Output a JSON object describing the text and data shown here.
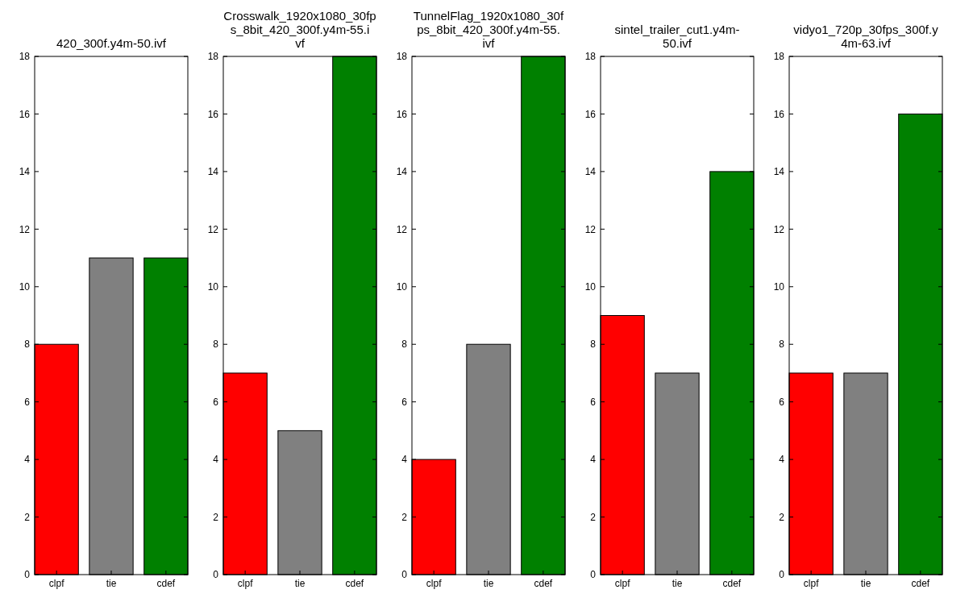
{
  "chart_data": [
    {
      "type": "bar",
      "title": "420_300f.y4m-50.ivf",
      "categories": [
        "clpf",
        "tie",
        "cdef"
      ],
      "values": [
        8,
        11,
        11
      ],
      "colors": [
        "#ff0000",
        "#808080",
        "#008000"
      ],
      "ylim": [
        0,
        18
      ],
      "yticks": [
        0,
        2,
        4,
        6,
        8,
        10,
        12,
        14,
        16,
        18
      ],
      "grid": false
    },
    {
      "type": "bar",
      "title": "Crosswalk_1920x1080_30fps_8bit_420_300f.y4m-55.ivf",
      "categories": [
        "clpf",
        "tie",
        "cdef"
      ],
      "values": [
        7,
        5,
        18
      ],
      "colors": [
        "#ff0000",
        "#808080",
        "#008000"
      ],
      "ylim": [
        0,
        18
      ],
      "yticks": [
        0,
        2,
        4,
        6,
        8,
        10,
        12,
        14,
        16,
        18
      ],
      "grid": false
    },
    {
      "type": "bar",
      "title": "TunnelFlag_1920x1080_30fps_8bit_420_300f.y4m-55.ivf",
      "categories": [
        "clpf",
        "tie",
        "cdef"
      ],
      "values": [
        4,
        8,
        18
      ],
      "colors": [
        "#ff0000",
        "#808080",
        "#008000"
      ],
      "ylim": [
        0,
        18
      ],
      "yticks": [
        0,
        2,
        4,
        6,
        8,
        10,
        12,
        14,
        16,
        18
      ],
      "grid": false
    },
    {
      "type": "bar",
      "title": "sintel_trailer_cut1.y4m-50.ivf",
      "categories": [
        "clpf",
        "tie",
        "cdef"
      ],
      "values": [
        9,
        7,
        14
      ],
      "colors": [
        "#ff0000",
        "#808080",
        "#008000"
      ],
      "ylim": [
        0,
        18
      ],
      "yticks": [
        0,
        2,
        4,
        6,
        8,
        10,
        12,
        14,
        16,
        18
      ],
      "grid": false
    },
    {
      "type": "bar",
      "title": "vidyo1_720p_30fps_300f.y4m-63.ivf",
      "categories": [
        "clpf",
        "tie",
        "cdef"
      ],
      "values": [
        7,
        7,
        16
      ],
      "colors": [
        "#ff0000",
        "#808080",
        "#008000"
      ],
      "ylim": [
        0,
        18
      ],
      "yticks": [
        0,
        2,
        4,
        6,
        8,
        10,
        12,
        14,
        16,
        18
      ],
      "grid": false
    }
  ]
}
